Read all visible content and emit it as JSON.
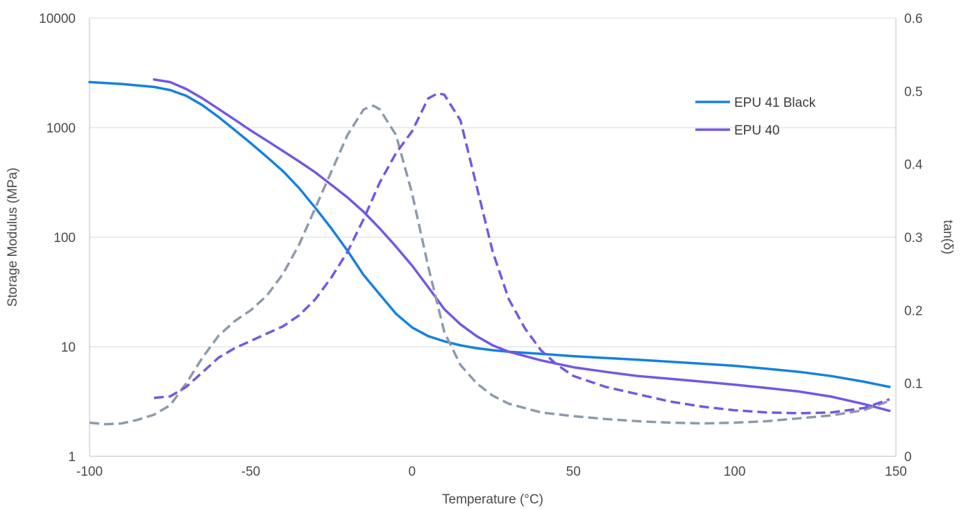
{
  "chart_data": {
    "type": "line",
    "title": "",
    "xlabel": "Temperature (°C)",
    "ylabel": "Storage Modulus (MPa)",
    "y2label": "tan(δ)",
    "xlim": [
      -100,
      150
    ],
    "ylim": [
      1,
      10000
    ],
    "yscale": "log",
    "y2lim": [
      0,
      0.6
    ],
    "grid": "horizontal",
    "legend_position": "top-right",
    "x_ticks": [
      "-100",
      "-50",
      "0",
      "50",
      "100",
      "150"
    ],
    "y_ticks": [
      "1",
      "10",
      "100",
      "1000",
      "10000"
    ],
    "y2_ticks": [
      "0",
      "0.1",
      "0.2",
      "0.3",
      "0.4",
      "0.5",
      "0.6"
    ],
    "colors": {
      "EPU 41 Black": "#1481e0",
      "EPU 40": "#7456e6",
      "tan_black": "#8d9aab",
      "grid": "#d9d9d9",
      "axis": "#bfbfbf"
    },
    "series": [
      {
        "name": "EPU 41 Black",
        "axis": "left",
        "style": "solid",
        "x": [
          -100,
          -90,
          -80,
          -75,
          -70,
          -65,
          -60,
          -55,
          -50,
          -45,
          -40,
          -35,
          -30,
          -25,
          -20,
          -15,
          -10,
          -5,
          0,
          5,
          10,
          15,
          20,
          25,
          30,
          40,
          50,
          60,
          70,
          80,
          90,
          100,
          110,
          120,
          130,
          140,
          148
        ],
        "values": [
          2600,
          2500,
          2350,
          2200,
          1950,
          1600,
          1250,
          950,
          720,
          540,
          400,
          280,
          185,
          120,
          75,
          45,
          30,
          20,
          15,
          12.5,
          11.2,
          10.3,
          9.7,
          9.3,
          9.0,
          8.6,
          8.2,
          7.9,
          7.6,
          7.3,
          7.0,
          6.7,
          6.3,
          5.9,
          5.4,
          4.8,
          4.3
        ]
      },
      {
        "name": "EPU 40",
        "axis": "left",
        "style": "solid",
        "x": [
          -80,
          -75,
          -70,
          -65,
          -60,
          -55,
          -50,
          -45,
          -40,
          -35,
          -30,
          -25,
          -20,
          -15,
          -10,
          -5,
          0,
          5,
          10,
          15,
          20,
          25,
          30,
          40,
          50,
          60,
          70,
          80,
          90,
          100,
          110,
          120,
          130,
          140,
          148
        ],
        "values": [
          2750,
          2600,
          2250,
          1850,
          1480,
          1180,
          940,
          760,
          610,
          490,
          390,
          300,
          230,
          170,
          120,
          82,
          55,
          35,
          22,
          16,
          12.5,
          10.3,
          9.0,
          7.5,
          6.5,
          5.9,
          5.4,
          5.1,
          4.8,
          4.5,
          4.2,
          3.9,
          3.5,
          3.0,
          2.6
        ]
      },
      {
        "name": "",
        "axis": "right",
        "style": "dashed",
        "color_key": "tan_black",
        "x": [
          -100,
          -95,
          -90,
          -85,
          -80,
          -75,
          -70,
          -65,
          -60,
          -55,
          -50,
          -45,
          -40,
          -35,
          -30,
          -25,
          -20,
          -15,
          -12,
          -10,
          -5,
          0,
          5,
          10,
          15,
          20,
          25,
          30,
          40,
          50,
          60,
          70,
          80,
          90,
          100,
          110,
          120,
          130,
          140,
          148
        ],
        "values": [
          0.046,
          0.044,
          0.045,
          0.05,
          0.057,
          0.07,
          0.1,
          0.135,
          0.165,
          0.185,
          0.2,
          0.22,
          0.25,
          0.29,
          0.34,
          0.39,
          0.44,
          0.475,
          0.48,
          0.475,
          0.44,
          0.36,
          0.26,
          0.17,
          0.125,
          0.1,
          0.083,
          0.072,
          0.06,
          0.055,
          0.051,
          0.048,
          0.046,
          0.045,
          0.046,
          0.048,
          0.052,
          0.056,
          0.063,
          0.076
        ]
      },
      {
        "name": "",
        "axis": "right",
        "style": "dashed",
        "color_key": "EPU 40",
        "x": [
          -80,
          -75,
          -70,
          -65,
          -60,
          -55,
          -50,
          -45,
          -40,
          -35,
          -30,
          -25,
          -20,
          -15,
          -10,
          -5,
          0,
          5,
          8,
          10,
          15,
          20,
          25,
          30,
          35,
          40,
          45,
          50,
          60,
          70,
          80,
          90,
          100,
          110,
          120,
          130,
          140,
          148
        ],
        "values": [
          0.08,
          0.082,
          0.095,
          0.115,
          0.135,
          0.148,
          0.158,
          0.168,
          0.178,
          0.193,
          0.215,
          0.245,
          0.28,
          0.325,
          0.375,
          0.415,
          0.445,
          0.49,
          0.497,
          0.495,
          0.46,
          0.37,
          0.28,
          0.215,
          0.175,
          0.145,
          0.125,
          0.11,
          0.095,
          0.085,
          0.075,
          0.068,
          0.063,
          0.06,
          0.059,
          0.06,
          0.066,
          0.078
        ]
      }
    ]
  }
}
